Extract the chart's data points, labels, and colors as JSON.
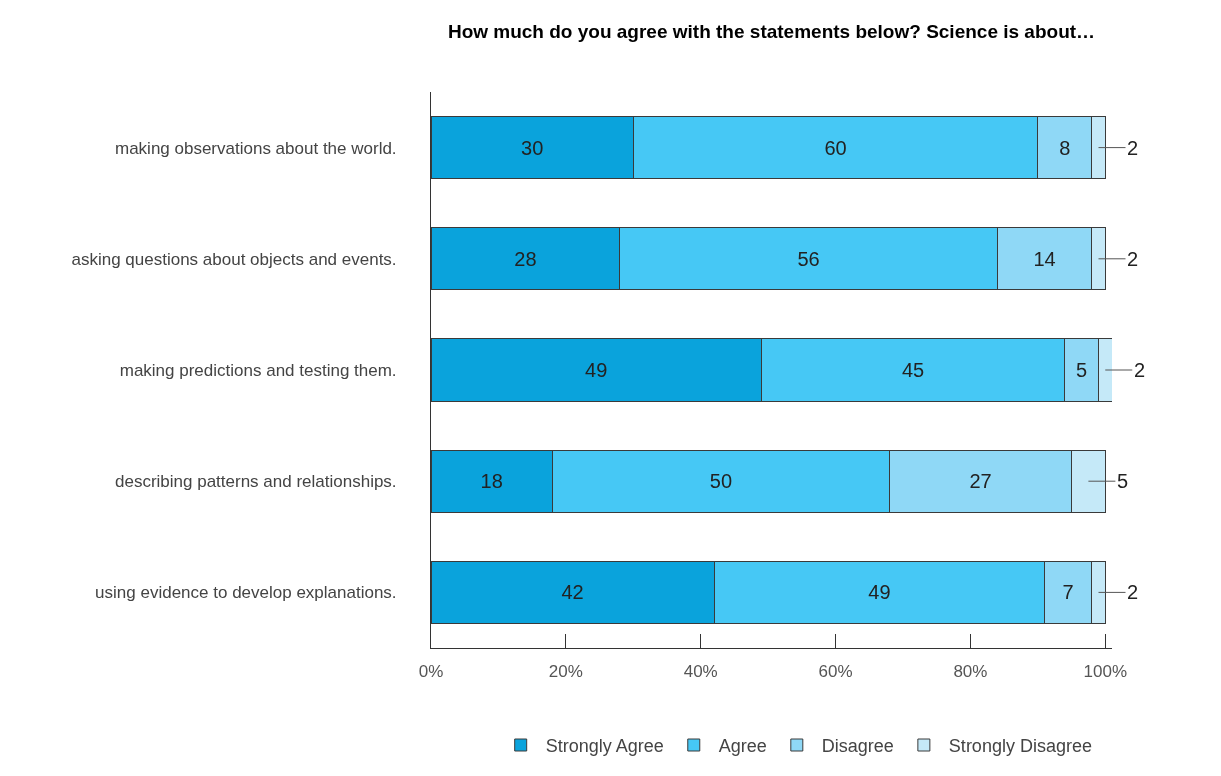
{
  "chart_data": {
    "type": "bar",
    "orientation": "horizontal",
    "stacked": true,
    "title": "How much do you agree with the statements below? Science is about…",
    "categories": [
      "making observations about the world.",
      "asking questions about objects and events.",
      "making predictions and testing them.",
      "describing patterns and relationships.",
      "using evidence to develop explanations."
    ],
    "series": [
      {
        "name": "Strongly Agree",
        "color": "#0aa3dc",
        "values": [
          30,
          28,
          49,
          18,
          42
        ]
      },
      {
        "name": "Agree",
        "color": "#46c8f5",
        "values": [
          60,
          56,
          45,
          50,
          49
        ]
      },
      {
        "name": "Disagree",
        "color": "#8fd8f6",
        "values": [
          8,
          14,
          5,
          27,
          7
        ]
      },
      {
        "name": "Strongly Disagree",
        "color": "#c5e9f8",
        "values": [
          2,
          2,
          2,
          5,
          2
        ]
      }
    ],
    "xlim": [
      0,
      101
    ],
    "xticks": [
      {
        "value": 0,
        "label": "0%"
      },
      {
        "value": 20,
        "label": "20%"
      },
      {
        "value": 40,
        "label": "40%"
      },
      {
        "value": 60,
        "label": "60%"
      },
      {
        "value": 80,
        "label": "80%"
      },
      {
        "value": 100,
        "label": "100%"
      }
    ],
    "data_labels": true,
    "legend": "bottom"
  }
}
